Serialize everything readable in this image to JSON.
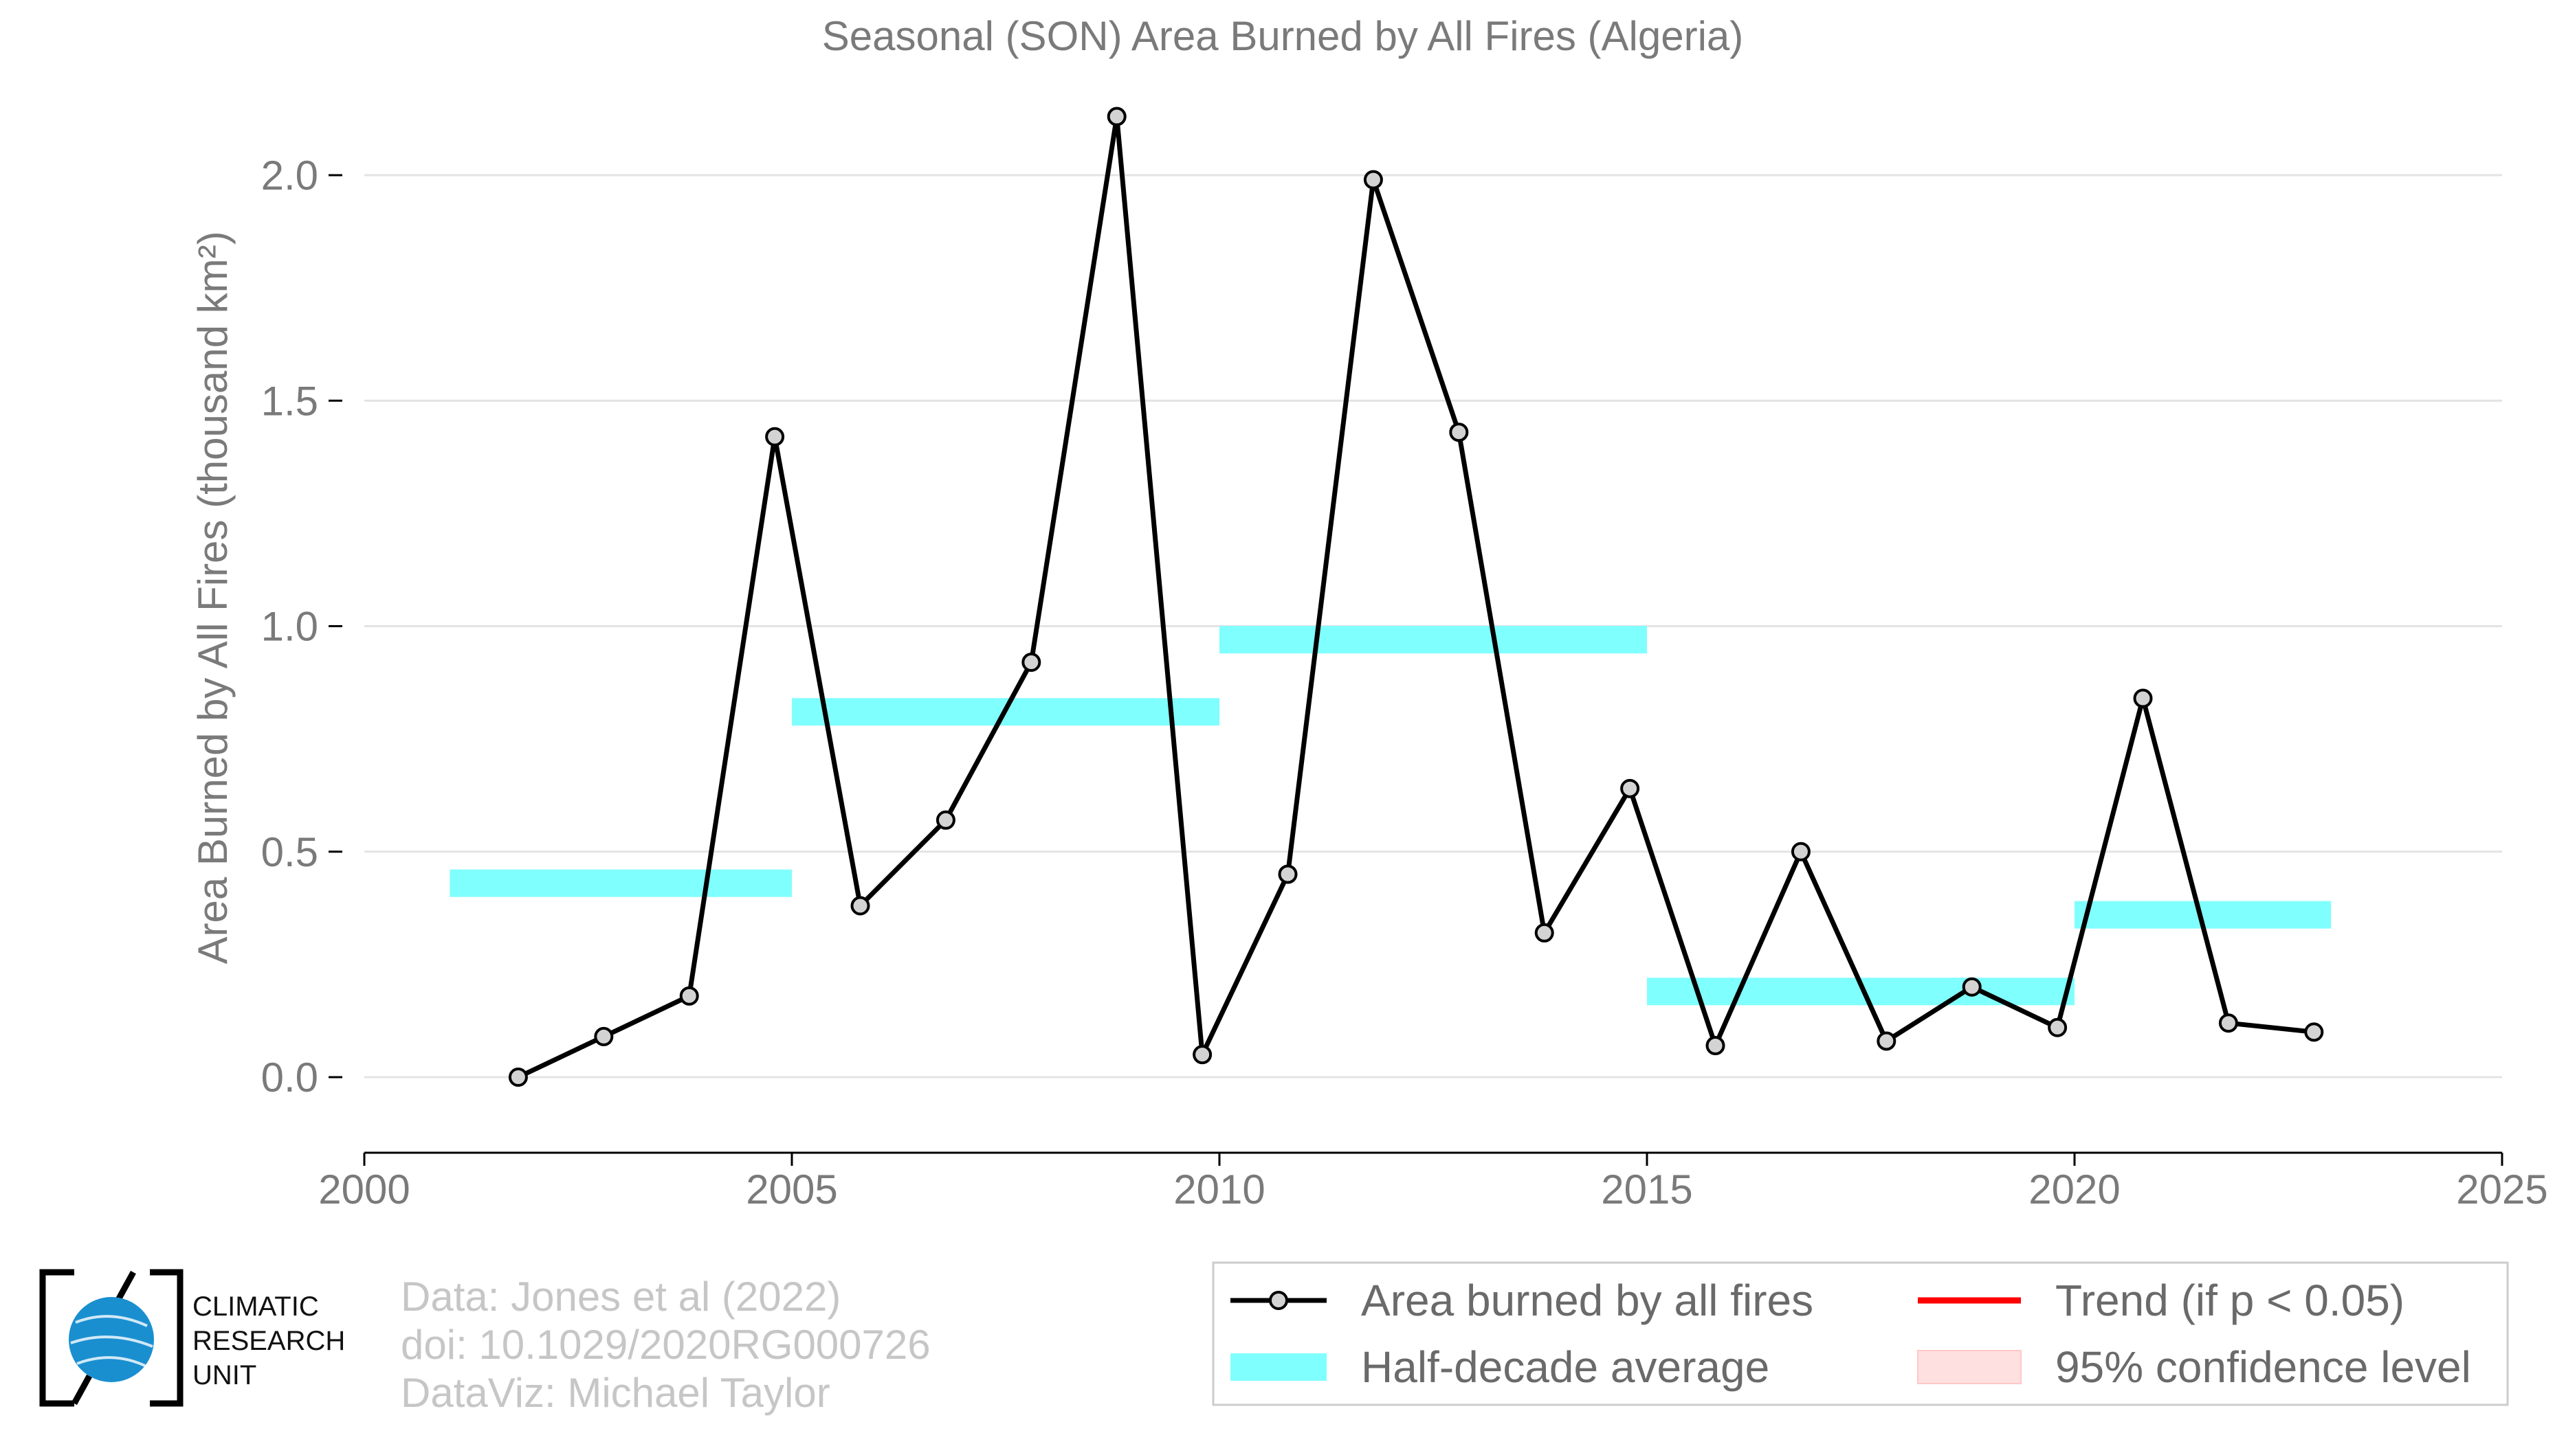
{
  "chart_data": {
    "type": "line",
    "title": "Seasonal (SON) Area Burned by All Fires (Algeria)",
    "xlabel": "",
    "ylabel": "Area Burned by All Fires (thousand km²)",
    "xlim": [
      2000,
      2025
    ],
    "ylim": [
      -0.17,
      2.2
    ],
    "x_ticks": [
      2000,
      2005,
      2010,
      2015,
      2020,
      2025
    ],
    "x_tick_labels": [
      "2000",
      "2005",
      "2010",
      "2015",
      "2020",
      "2025"
    ],
    "y_ticks": [
      0.0,
      0.5,
      1.0,
      1.5,
      2.0
    ],
    "y_tick_labels": [
      "0.0",
      "0.5",
      "1.0",
      "1.5",
      "2.0"
    ],
    "grid": "horizontal",
    "series": [
      {
        "name": "Area burned by all fires",
        "color": "#000000",
        "x": [
          2001.8,
          2002.8,
          2003.8,
          2004.8,
          2005.8,
          2006.8,
          2007.8,
          2008.8,
          2009.8,
          2010.8,
          2011.8,
          2012.8,
          2013.8,
          2014.8,
          2015.8,
          2016.8,
          2017.8,
          2018.8,
          2019.8,
          2020.8,
          2021.8,
          2022.8
        ],
        "values": [
          0.0,
          0.09,
          0.18,
          1.42,
          0.38,
          0.57,
          0.92,
          2.13,
          0.05,
          0.45,
          1.99,
          1.43,
          0.32,
          0.64,
          0.07,
          0.5,
          0.08,
          0.2,
          0.11,
          0.84,
          0.12,
          0.1
        ]
      },
      {
        "name": "Half-decade average",
        "color": "#80ffff",
        "segments": [
          {
            "x_start": 2001.0,
            "x_end": 2005.0,
            "value": 0.43
          },
          {
            "x_start": 2005.0,
            "x_end": 2010.0,
            "value": 0.81
          },
          {
            "x_start": 2010.0,
            "x_end": 2015.0,
            "value": 0.97
          },
          {
            "x_start": 2015.0,
            "x_end": 2020.0,
            "value": 0.19
          },
          {
            "x_start": 2020.0,
            "x_end": 2023.0,
            "value": 0.36
          }
        ]
      }
    ],
    "legend": {
      "placement": "bottom-right",
      "entries": [
        {
          "label": "Area burned by all fires",
          "kind": "line-marker",
          "color": "#000000"
        },
        {
          "label": "Trend (if p < 0.05)",
          "kind": "line",
          "color": "#ff0000"
        },
        {
          "label": "Half-decade average",
          "kind": "band",
          "color": "#80ffff"
        },
        {
          "label": "95% confidence level",
          "kind": "patch",
          "color": "#ffe0e0"
        }
      ]
    }
  },
  "credits": {
    "lines": [
      "Data: Jones et al (2022)",
      "doi: 10.1029/2020RG000726",
      "DataViz: Michael Taylor"
    ]
  },
  "logo": {
    "lines": [
      "CLIMATIC",
      "RESEARCH",
      "UNIT"
    ],
    "color": "#1a8fd0"
  }
}
